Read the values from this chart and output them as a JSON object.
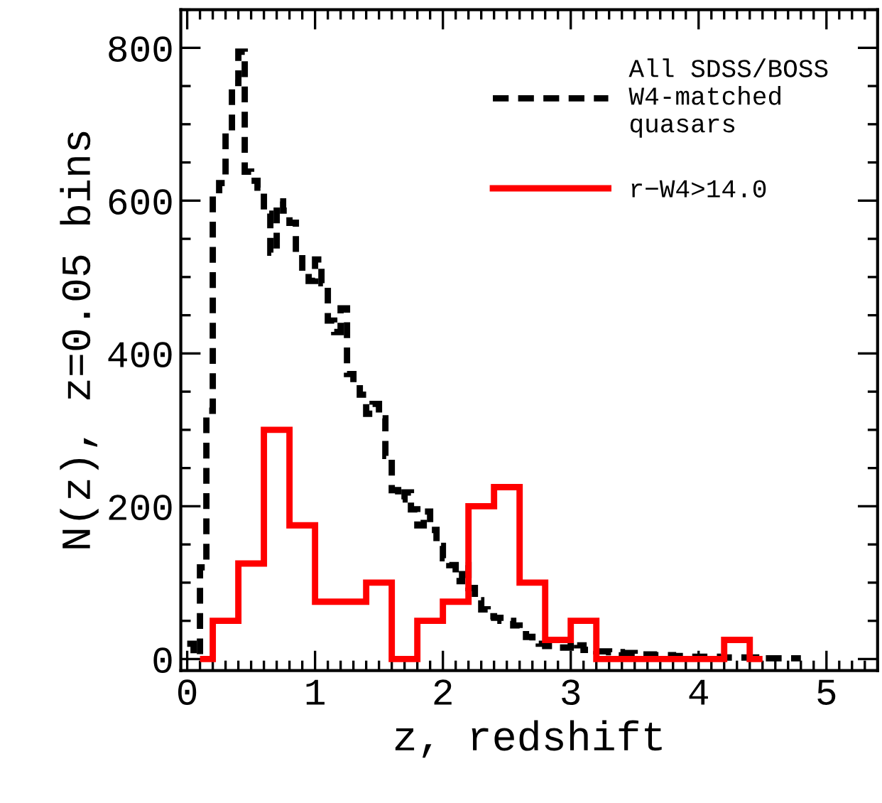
{
  "chart_data": {
    "type": "histogram",
    "xlabel": "z, redshift",
    "ylabel": "N(z), z=0.05 bins",
    "xlim": [
      -0.05,
      5.4
    ],
    "ylim": [
      -15,
      850
    ],
    "xticks": [
      0,
      1,
      2,
      3,
      4,
      5
    ],
    "yticks": [
      0,
      200,
      400,
      600,
      800
    ],
    "legend": "top right",
    "bins": [
      0,
      0.05,
      0.1,
      0.15,
      0.2,
      0.25,
      0.3,
      0.35,
      0.4,
      0.45,
      0.5,
      0.55,
      0.6,
      0.65,
      0.7,
      0.75,
      0.8,
      0.85,
      0.9,
      0.95,
      1.0,
      1.05,
      1.1,
      1.15,
      1.2,
      1.25,
      1.3,
      1.35,
      1.4,
      1.45,
      1.5,
      1.55,
      1.6,
      1.65,
      1.7,
      1.75,
      1.8,
      1.85,
      1.9,
      1.95,
      2.0,
      2.05,
      2.1,
      2.15,
      2.2,
      2.25,
      2.3,
      2.35,
      2.4,
      2.45,
      2.5,
      2.55,
      2.6,
      2.65,
      2.7,
      2.75,
      2.8,
      2.85,
      2.9,
      2.95,
      3.0,
      3.05,
      3.1,
      3.15,
      3.2,
      3.25,
      3.3,
      3.35,
      3.4,
      3.45,
      3.5,
      3.55,
      3.6,
      3.65,
      3.7,
      3.75,
      3.8,
      3.85,
      3.9,
      3.95,
      4.0,
      4.05,
      4.1,
      4.15,
      4.2,
      4.25,
      4.3,
      4.35,
      4.4,
      4.45,
      4.5,
      4.55,
      4.6,
      4.65,
      4.7,
      4.75,
      4.8
    ],
    "series": [
      {
        "name": "All SDSS/BOSS\nW4-matched\nquasars",
        "color": "#000000",
        "line_style": "dashed",
        "values": [
          20,
          5,
          120,
          325,
          608,
          623,
          690,
          754,
          795,
          638,
          626,
          617,
          583,
          532,
          599,
          587,
          571,
          529,
          507,
          495,
          523,
          492,
          443,
          428,
          459,
          373,
          361,
          346,
          321,
          334,
          315,
          266,
          221,
          209,
          218,
          196,
          175,
          193,
          169,
          148,
          132,
          123,
          102,
          123,
          93,
          77,
          65,
          56,
          54,
          50,
          50,
          44,
          38,
          29,
          22,
          20,
          17,
          17,
          15,
          15,
          22,
          18,
          12,
          12,
          10,
          10,
          9,
          9,
          8,
          8,
          7,
          6,
          6,
          5,
          5,
          5,
          4,
          4,
          4,
          3,
          3,
          3,
          3,
          2,
          2,
          2,
          2,
          2,
          2,
          1,
          1,
          1,
          1,
          1,
          1,
          1
        ]
      },
      {
        "name": "r−W4>14.0",
        "color": "#ff0000",
        "line_style": "solid",
        "bins": [
          0.1,
          0.2,
          0.4,
          0.6,
          0.8,
          1.0,
          1.2,
          1.4,
          1.6,
          1.8,
          2.0,
          2.2,
          2.4,
          2.6,
          2.8,
          3.0,
          3.2,
          3.4,
          3.6,
          3.8,
          4.0,
          4.2,
          4.4,
          4.5
        ],
        "values": [
          0,
          50,
          125,
          300,
          175,
          75,
          75,
          100,
          0,
          50,
          75,
          200,
          225,
          100,
          25,
          50,
          0,
          0,
          0,
          0,
          0,
          25,
          0
        ]
      }
    ]
  }
}
